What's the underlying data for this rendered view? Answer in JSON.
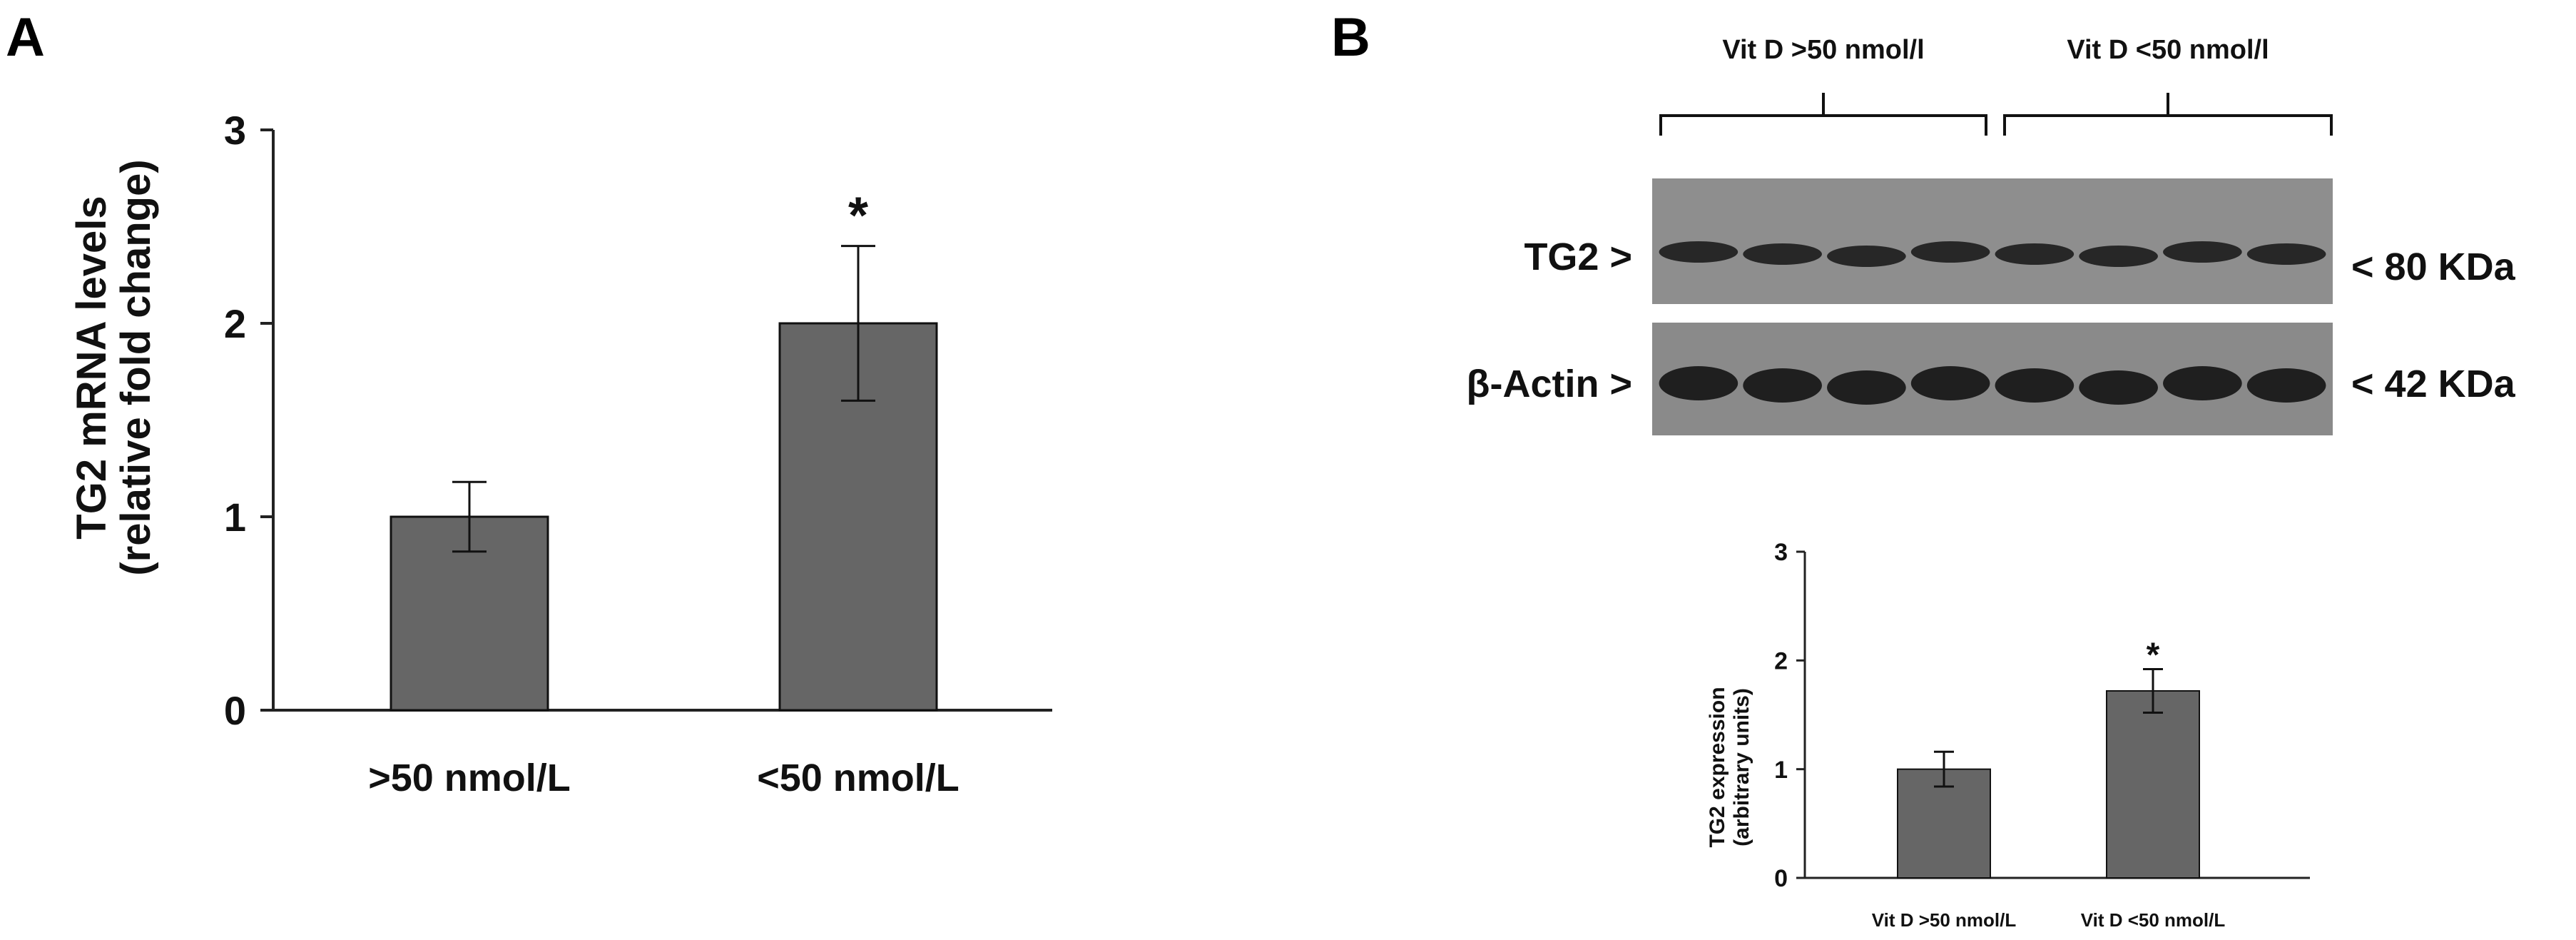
{
  "panels": {
    "a_label": "A",
    "b_label": "B"
  },
  "chart_data": [
    {
      "type": "bar",
      "panel": "A",
      "categories": [
        ">50 nmol/L",
        "<50 nmol/L"
      ],
      "values": [
        1.0,
        2.0
      ],
      "errors": [
        0.18,
        0.4
      ],
      "ylabel_line1": "TG2 mRNA levels",
      "ylabel_line2": "(relative fold change)",
      "ylim": [
        0,
        3
      ],
      "yticks": [
        "0",
        "1",
        "2",
        "3"
      ],
      "significance": [
        "",
        "*"
      ],
      "bar_color": "#666666",
      "grid": false
    },
    {
      "type": "bar",
      "panel": "B",
      "categories": [
        "Vit D >50 nmol/L",
        "Vit D <50 nmol/L"
      ],
      "values": [
        1.0,
        1.72
      ],
      "errors": [
        0.16,
        0.2
      ],
      "ylabel_line1": "TG2 expression",
      "ylabel_line2": "(arbitrary units)",
      "ylim": [
        0,
        3
      ],
      "yticks": [
        "0",
        "1",
        "2",
        "3"
      ],
      "significance": [
        "",
        "*"
      ],
      "bar_color": "#666666",
      "grid": false
    }
  ],
  "blot": {
    "group_labels": [
      "Vit D >50 nmol/l",
      "Vit D <50 nmol/l"
    ],
    "rows": [
      {
        "left_label": "TG2 >",
        "right_label": "< 80 KDa",
        "lanes": 8
      },
      {
        "left_label": "β-Actin >",
        "right_label": "< 42 KDa",
        "lanes": 8
      }
    ]
  }
}
